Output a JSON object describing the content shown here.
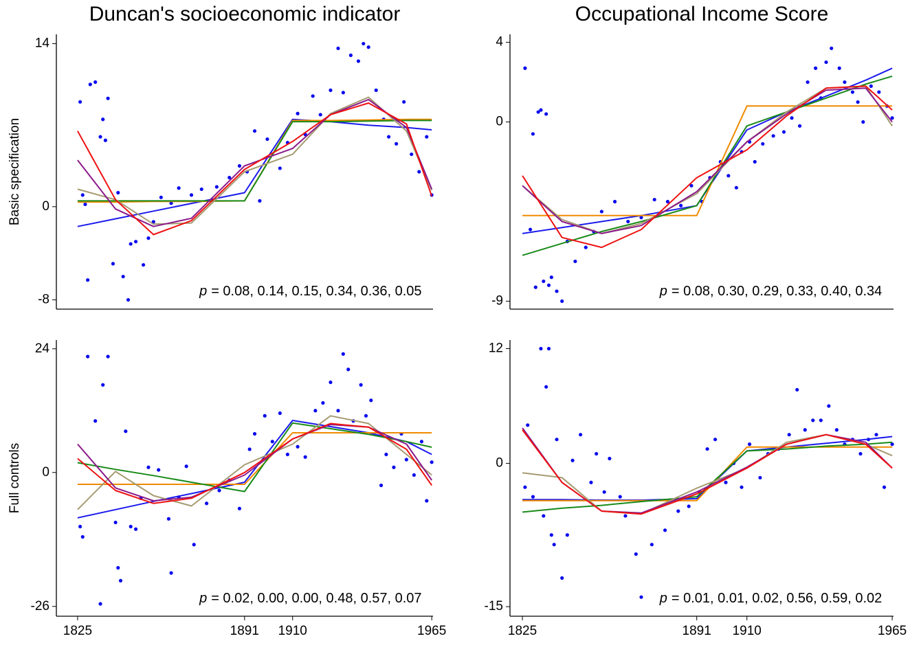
{
  "chart_data": [
    {
      "type": "scatter",
      "title": "Duncan's socioeconomic indicator",
      "ylabel": "Basic specification",
      "xlim": [
        1816.6,
        1965.5
      ],
      "ylim": [
        -8.8,
        14.8
      ],
      "yticks": [
        -8,
        0,
        14
      ],
      "annotation_symbol": "p",
      "annotation": "= 0.08, 0.14, 0.15, 0.34, 0.36, 0.05",
      "points": {
        "color": "#0a0aee",
        "x": [
          1826,
          1827,
          1828,
          1829,
          1830,
          1832,
          1834,
          1835,
          1836,
          1837,
          1839,
          1841,
          1843,
          1845,
          1846,
          1848,
          1851,
          1853,
          1855,
          1858,
          1862,
          1865,
          1870,
          1874,
          1880,
          1885,
          1889,
          1892,
          1895,
          1897,
          1900,
          1905,
          1908,
          1912,
          1915,
          1918,
          1921,
          1925,
          1928,
          1930,
          1933,
          1936,
          1938,
          1940,
          1943,
          1946,
          1948,
          1951,
          1954,
          1957,
          1960,
          1963,
          1965
        ],
        "y": [
          9.0,
          1.0,
          0.2,
          -6.3,
          10.5,
          10.7,
          6.0,
          7.5,
          5.7,
          9.3,
          -4.9,
          1.2,
          -6.0,
          -8.0,
          -3.2,
          -3.0,
          -5.0,
          -2.7,
          -1.3,
          0.8,
          0.3,
          1.6,
          1.0,
          1.5,
          1.7,
          2.5,
          3.5,
          3.0,
          6.5,
          0.5,
          5.8,
          3.3,
          5.5,
          8.0,
          6.2,
          9.5,
          7.9,
          10.0,
          13.6,
          9.8,
          13.0,
          12.5,
          14.0,
          13.7,
          10.0,
          7.5,
          6.0,
          5.4,
          9.0,
          4.5,
          3.0,
          6.0,
          1.0
        ]
      },
      "line_x": [
        1825,
        1840,
        1855,
        1870,
        1891,
        1910,
        1925,
        1940,
        1955,
        1965
      ],
      "series": [
        {
          "color": "#1a1aee",
          "values": [
            -1.7,
            -1.04,
            -0.38,
            0.28,
            1.2,
            7.5,
            7.3,
            7.0,
            6.8,
            6.6
          ]
        },
        {
          "color": "#f08a00",
          "values": [
            0.4,
            0.4,
            0.45,
            0.45,
            0.5,
            7.4,
            7.4,
            7.45,
            7.5,
            7.5
          ]
        },
        {
          "color": "#188a18",
          "values": [
            0.5,
            0.5,
            0.5,
            0.5,
            0.5,
            7.3,
            7.3,
            7.35,
            7.4,
            7.4
          ]
        },
        {
          "color": "#a59a70",
          "values": [
            1.5,
            0.6,
            -1.5,
            -1.4,
            3.0,
            4.5,
            8.0,
            9.4,
            6.5,
            1.4
          ]
        },
        {
          "color": "#8b1a8b",
          "values": [
            4.0,
            -0.2,
            -1.7,
            -1.0,
            3.5,
            5.0,
            7.9,
            9.2,
            6.8,
            1.5
          ]
        },
        {
          "color": "#ee1111",
          "values": [
            6.5,
            0.6,
            -2.4,
            -1.2,
            3.2,
            5.6,
            7.9,
            8.9,
            7.1,
            0.9
          ]
        }
      ]
    },
    {
      "type": "scatter",
      "title": "Occupational Income Score",
      "xlim": [
        1820.3,
        1965.5
      ],
      "ylim": [
        -9.4,
        4.4
      ],
      "yticks": [
        -9,
        0,
        4
      ],
      "annotation_symbol": "p",
      "annotation": "= 0.08, 0.30, 0.29, 0.33, 0.40, 0.34",
      "points": {
        "color": "#0a0aee",
        "x": [
          1826,
          1828,
          1829,
          1830,
          1831,
          1832,
          1833,
          1834,
          1835,
          1836,
          1838,
          1840,
          1842,
          1845,
          1849,
          1852,
          1855,
          1860,
          1865,
          1870,
          1875,
          1880,
          1885,
          1889,
          1893,
          1896,
          1900,
          1903,
          1906,
          1908,
          1911,
          1913,
          1916,
          1920,
          1924,
          1927,
          1930,
          1933,
          1936,
          1938,
          1940,
          1942,
          1945,
          1947,
          1950,
          1952,
          1954,
          1957,
          1960,
          1963,
          1965
        ],
        "y": [
          2.7,
          -5.4,
          -0.6,
          -8.3,
          0.5,
          0.6,
          -8.0,
          0.4,
          -8.2,
          -7.8,
          -8.5,
          -9.0,
          -6.0,
          -7.0,
          -6.3,
          -5.5,
          -4.5,
          -4.0,
          -5.0,
          -4.8,
          -3.9,
          -4.0,
          -4.2,
          -3.2,
          -4.0,
          -2.8,
          -2.0,
          -2.7,
          -3.3,
          -1.5,
          -1.0,
          -2.0,
          -1.1,
          -0.7,
          -0.5,
          0.2,
          -0.2,
          2.0,
          2.7,
          1.2,
          3.0,
          3.7,
          2.7,
          2.0,
          1.5,
          1.0,
          0.0,
          1.8,
          1.5,
          0.8,
          0.2
        ]
      },
      "line_x": [
        1825,
        1840,
        1855,
        1870,
        1891,
        1910,
        1925,
        1940,
        1955,
        1965
      ],
      "series": [
        {
          "color": "#1a1aee",
          "values": [
            -5.6,
            -5.3,
            -5.0,
            -4.7,
            -4.2,
            -0.4,
            0.5,
            1.3,
            2.1,
            2.7
          ]
        },
        {
          "color": "#f08a00",
          "values": [
            -4.7,
            -4.7,
            -4.7,
            -4.7,
            -4.7,
            0.8,
            0.8,
            0.8,
            0.8,
            0.8
          ]
        },
        {
          "color": "#188a18",
          "values": [
            -6.7,
            -6.1,
            -5.5,
            -5.0,
            -4.2,
            -0.2,
            0.5,
            1.2,
            1.9,
            2.3
          ]
        },
        {
          "color": "#a59a70",
          "values": [
            -3.2,
            -4.9,
            -5.6,
            -5.1,
            -3.6,
            -1.0,
            0.5,
            1.7,
            1.8,
            -0.2
          ]
        },
        {
          "color": "#8b1a8b",
          "values": [
            -3.2,
            -5.0,
            -5.6,
            -5.2,
            -3.5,
            -1.0,
            0.4,
            1.6,
            1.7,
            0.0
          ]
        },
        {
          "color": "#ee1111",
          "values": [
            -2.7,
            -5.8,
            -6.3,
            -5.4,
            -2.8,
            -1.4,
            0.3,
            1.7,
            1.8,
            0.6
          ]
        }
      ]
    },
    {
      "type": "scatter",
      "ylabel": "Full controls",
      "xlim": [
        1816.6,
        1965.5
      ],
      "ylim": [
        -27.9,
        25.7
      ],
      "yticks": [
        -26,
        0,
        24
      ],
      "xticks": [
        1825,
        1891,
        1910,
        1965
      ],
      "annotation_symbol": "p",
      "annotation": "= 0.02, 0.00, 0.00, 0.48, 0.57, 0.07",
      "points": {
        "color": "#0a0aee",
        "x": [
          1826,
          1827,
          1829,
          1832,
          1834,
          1835,
          1837,
          1840,
          1841,
          1842,
          1844,
          1846,
          1848,
          1850,
          1853,
          1857,
          1861,
          1862,
          1865,
          1868,
          1871,
          1876,
          1881,
          1885,
          1889,
          1893,
          1895,
          1899,
          1902,
          1905,
          1908,
          1912,
          1915,
          1919,
          1922,
          1925,
          1928,
          1930,
          1932,
          1934,
          1937,
          1939,
          1941,
          1945,
          1947,
          1950,
          1953,
          1955,
          1958,
          1961,
          1963,
          1965
        ],
        "y": [
          -10.5,
          -12.5,
          22.5,
          10.0,
          -25.5,
          17.0,
          22.5,
          -9.7,
          -18.5,
          -21.0,
          8.0,
          -10.5,
          -11.0,
          -5.0,
          1.0,
          0.5,
          -9.0,
          -19.5,
          -4.8,
          1.2,
          -14.0,
          -6.0,
          -3.5,
          -1.5,
          -7.0,
          4.5,
          7.5,
          11.0,
          6.0,
          11.5,
          3.5,
          5.0,
          3.0,
          12.0,
          13.5,
          17.5,
          12.0,
          23.0,
          20.0,
          10.0,
          17.0,
          11.0,
          14.0,
          -2.5,
          3.5,
          1.0,
          7.5,
          2.5,
          -0.5,
          6.0,
          -5.5,
          2.0
        ]
      },
      "line_x": [
        1825,
        1840,
        1855,
        1870,
        1891,
        1910,
        1925,
        1940,
        1955,
        1965
      ],
      "series": [
        {
          "color": "#1a1aee",
          "values": [
            -8.8,
            -7.2,
            -5.6,
            -4.1,
            -1.9,
            10.1,
            8.9,
            7.7,
            6.0,
            3.5
          ]
        },
        {
          "color": "#f08a00",
          "values": [
            -2.3,
            -2.3,
            -2.3,
            -2.3,
            -2.3,
            7.7,
            7.7,
            7.7,
            7.7,
            7.7
          ]
        },
        {
          "color": "#188a18",
          "values": [
            1.9,
            0.6,
            -0.6,
            -1.9,
            -3.7,
            9.6,
            8.5,
            7.4,
            6.0,
            4.9
          ]
        },
        {
          "color": "#a59a70",
          "values": [
            -7.2,
            0.2,
            -4.5,
            -6.5,
            1.5,
            5.5,
            11.0,
            9.5,
            3.5,
            -0.5
          ]
        },
        {
          "color": "#8b1a8b",
          "values": [
            5.5,
            -3.0,
            -5.5,
            -4.8,
            -0.5,
            6.5,
            9.3,
            8.8,
            5.5,
            -1.5
          ]
        },
        {
          "color": "#ee1111",
          "values": [
            2.7,
            -3.5,
            -6.0,
            -5.0,
            0.0,
            6.5,
            9.5,
            8.8,
            4.5,
            -2.5
          ]
        }
      ]
    },
    {
      "type": "scatter",
      "xlim": [
        1820.3,
        1965.5
      ],
      "ylim": [
        -16,
        12.9
      ],
      "yticks": [
        -15,
        0,
        12
      ],
      "xticks": [
        1825,
        1891,
        1910,
        1965
      ],
      "annotation_symbol": "p",
      "annotation": "= 0.01, 0.01, 0.02, 0.56, 0.59, 0.02",
      "points": {
        "color": "#0a0aee",
        "x": [
          1826,
          1827,
          1829,
          1832,
          1833,
          1834,
          1835,
          1836,
          1837,
          1838,
          1840,
          1842,
          1844,
          1847,
          1851,
          1853,
          1856,
          1858,
          1862,
          1864,
          1868,
          1870,
          1874,
          1879,
          1884,
          1888,
          1892,
          1895,
          1898,
          1902,
          1905,
          1908,
          1911,
          1915,
          1918,
          1922,
          1926,
          1929,
          1932,
          1935,
          1938,
          1941,
          1944,
          1947,
          1950,
          1953,
          1956,
          1959,
          1962,
          1965
        ],
        "y": [
          -2.5,
          4.0,
          -3.5,
          12.0,
          -5.5,
          8.0,
          12.0,
          -7.5,
          -8.5,
          2.5,
          -12.0,
          -7.5,
          0.3,
          3.0,
          -2.0,
          1.0,
          -3.0,
          0.5,
          -3.5,
          -5.5,
          -9.5,
          -14.0,
          -8.5,
          -7.0,
          -5.0,
          -4.5,
          -3.0,
          1.5,
          2.5,
          -2.0,
          0.0,
          -2.5,
          2.0,
          -1.5,
          1.0,
          1.5,
          3.0,
          7.7,
          3.5,
          4.5,
          4.5,
          6.0,
          3.5,
          2.0,
          2.5,
          1.0,
          2.5,
          3.0,
          -2.5,
          2.0
        ]
      },
      "line_x": [
        1825,
        1840,
        1855,
        1870,
        1891,
        1910,
        1925,
        1940,
        1955,
        1965
      ],
      "series": [
        {
          "color": "#1a1aee",
          "values": [
            -3.8,
            -3.8,
            -3.85,
            -3.85,
            -3.7,
            1.3,
            1.7,
            2.1,
            2.5,
            2.8
          ]
        },
        {
          "color": "#f08a00",
          "values": [
            -3.9,
            -3.9,
            -3.9,
            -3.9,
            -3.9,
            1.7,
            1.7,
            1.7,
            1.7,
            1.7
          ]
        },
        {
          "color": "#188a18",
          "values": [
            -5.1,
            -4.7,
            -4.4,
            -4.0,
            -3.5,
            1.3,
            1.5,
            1.8,
            2.0,
            2.2
          ]
        },
        {
          "color": "#a59a70",
          "values": [
            -1.0,
            -1.5,
            -5.0,
            -5.3,
            -2.6,
            -0.5,
            2.2,
            3.0,
            2.0,
            0.8
          ]
        },
        {
          "color": "#8b1a8b",
          "values": [
            3.7,
            -2.0,
            -5.0,
            -5.2,
            -3.0,
            -0.4,
            2.0,
            3.0,
            2.2,
            -0.5
          ]
        },
        {
          "color": "#ee1111",
          "values": [
            3.5,
            -2.0,
            -5.0,
            -5.3,
            -3.2,
            -0.5,
            2.0,
            3.0,
            2.0,
            -0.5
          ]
        }
      ]
    }
  ]
}
